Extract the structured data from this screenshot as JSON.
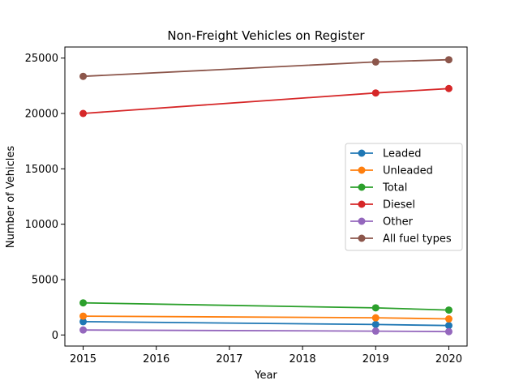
{
  "chart_data": {
    "type": "line",
    "title": "Non-Freight Vehicles on Register",
    "xlabel": "Year",
    "ylabel": "Number of Vehicles",
    "x": [
      2015,
      2019,
      2020
    ],
    "xticks": [
      2015,
      2016,
      2017,
      2018,
      2019,
      2020
    ],
    "yticks": [
      0,
      5000,
      10000,
      15000,
      20000,
      25000
    ],
    "xlim": [
      2014.75,
      2020.25
    ],
    "ylim": [
      -1000,
      26000
    ],
    "grid": false,
    "legend_position": "center-right",
    "series": [
      {
        "name": "Leaded",
        "color": "#1f77b4",
        "values": [
          1200,
          950,
          850
        ]
      },
      {
        "name": "Unleaded",
        "color": "#ff7f0e",
        "values": [
          1700,
          1550,
          1450
        ]
      },
      {
        "name": "Total",
        "color": "#2ca02c",
        "values": [
          2900,
          2450,
          2250
        ]
      },
      {
        "name": "Diesel",
        "color": "#d62728",
        "values": [
          20000,
          21850,
          22250
        ]
      },
      {
        "name": "Other",
        "color": "#9467bd",
        "values": [
          450,
          350,
          300
        ]
      },
      {
        "name": "All fuel types",
        "color": "#8c564b",
        "values": [
          23350,
          24650,
          24850
        ]
      }
    ]
  }
}
